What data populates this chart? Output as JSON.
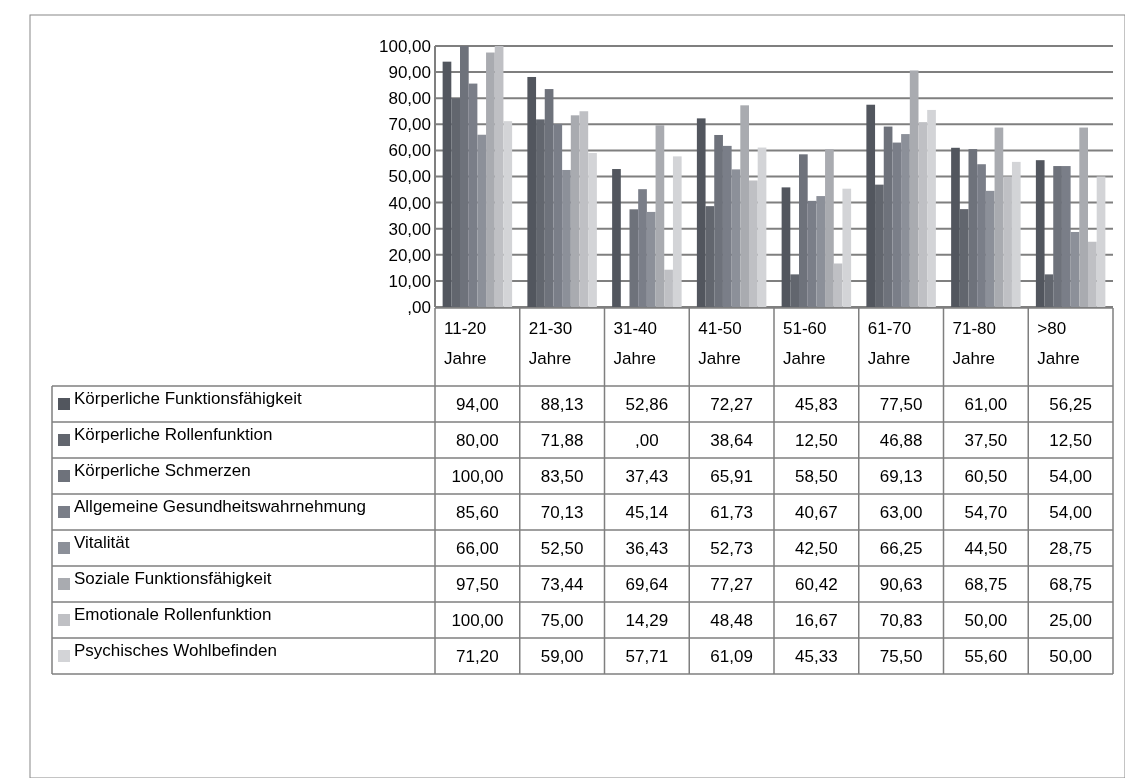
{
  "chart_data": {
    "type": "bar",
    "categories": [
      "11-20 Jahre",
      "21-30 Jahre",
      "31-40 Jahre",
      "41-50 Jahre",
      "51-60 Jahre",
      "61-70 Jahre",
      "71-80 Jahre",
      ">80 Jahre"
    ],
    "series": [
      {
        "name": "Körperliche Funktionsfähigkeit",
        "color": "#52565e",
        "values": [
          94.0,
          88.13,
          52.86,
          72.27,
          45.83,
          77.5,
          61.0,
          56.25
        ],
        "value_labels": [
          "94,00",
          "88,13",
          "52,86",
          "72,27",
          "45,83",
          "77,50",
          "61,00",
          "56,25"
        ]
      },
      {
        "name": "Körperliche Rollenfunktion",
        "color": "#62666e",
        "values": [
          80.0,
          71.88,
          0.0,
          38.64,
          12.5,
          46.88,
          37.5,
          12.5
        ],
        "value_labels": [
          "80,00",
          "71,88",
          ",00",
          "38,64",
          "12,50",
          "46,88",
          "37,50",
          "12,50"
        ]
      },
      {
        "name": "Körperliche Schmerzen",
        "color": "#6e727b",
        "values": [
          100.0,
          83.5,
          37.43,
          65.91,
          58.5,
          69.13,
          60.5,
          54.0
        ],
        "value_labels": [
          "100,00",
          "83,50",
          "37,43",
          "65,91",
          "58,50",
          "69,13",
          "60,50",
          "54,00"
        ]
      },
      {
        "name": "Allgemeine Gesundheitswahrnehmung",
        "color": "#7a7e88",
        "values": [
          85.6,
          70.13,
          45.14,
          61.73,
          40.67,
          63.0,
          54.7,
          54.0
        ],
        "value_labels": [
          "85,60",
          "70,13",
          "45,14",
          "61,73",
          "40,67",
          "63,00",
          "54,70",
          "54,00"
        ]
      },
      {
        "name": "Vitalität",
        "color": "#8c9099",
        "values": [
          66.0,
          52.5,
          36.43,
          52.73,
          42.5,
          66.25,
          44.5,
          28.75
        ],
        "value_labels": [
          "66,00",
          "52,50",
          "36,43",
          "52,73",
          "42,50",
          "66,25",
          "44,50",
          "28,75"
        ]
      },
      {
        "name": "Soziale Funktionsfähigkeit",
        "color": "#a9abb0",
        "values": [
          97.5,
          73.44,
          69.64,
          77.27,
          60.42,
          90.63,
          68.75,
          68.75
        ],
        "value_labels": [
          "97,50",
          "73,44",
          "69,64",
          "77,27",
          "60,42",
          "90,63",
          "68,75",
          "68,75"
        ]
      },
      {
        "name": "Emotionale Rollenfunktion",
        "color": "#bfc0c4",
        "values": [
          100.0,
          75.0,
          14.29,
          48.48,
          16.67,
          70.83,
          50.0,
          25.0
        ],
        "value_labels": [
          "100,00",
          "75,00",
          "14,29",
          "48,48",
          "16,67",
          "70,83",
          "50,00",
          "25,00"
        ]
      },
      {
        "name": "Psychisches Wohlbefinden",
        "color": "#d3d4d7",
        "values": [
          71.2,
          59.0,
          57.71,
          61.09,
          45.33,
          75.5,
          55.6,
          50.0
        ],
        "value_labels": [
          "71,20",
          "59,00",
          "57,71",
          "61,09",
          "45,33",
          "75,50",
          "55,60",
          "50,00"
        ]
      }
    ],
    "ylim": [
      0,
      100
    ],
    "yticks": [
      {
        "value": 0,
        "label": ",00"
      },
      {
        "value": 10,
        "label": "10,00"
      },
      {
        "value": 20,
        "label": "20,00"
      },
      {
        "value": 30,
        "label": "30,00"
      },
      {
        "value": 40,
        "label": "40,00"
      },
      {
        "value": 50,
        "label": "50,00"
      },
      {
        "value": 60,
        "label": "60,00"
      },
      {
        "value": 70,
        "label": "70,00"
      },
      {
        "value": 80,
        "label": "80,00"
      },
      {
        "value": 90,
        "label": "90,00"
      },
      {
        "value": 100,
        "label": "100,00"
      }
    ],
    "grid": "y",
    "legend": "bottom"
  }
}
